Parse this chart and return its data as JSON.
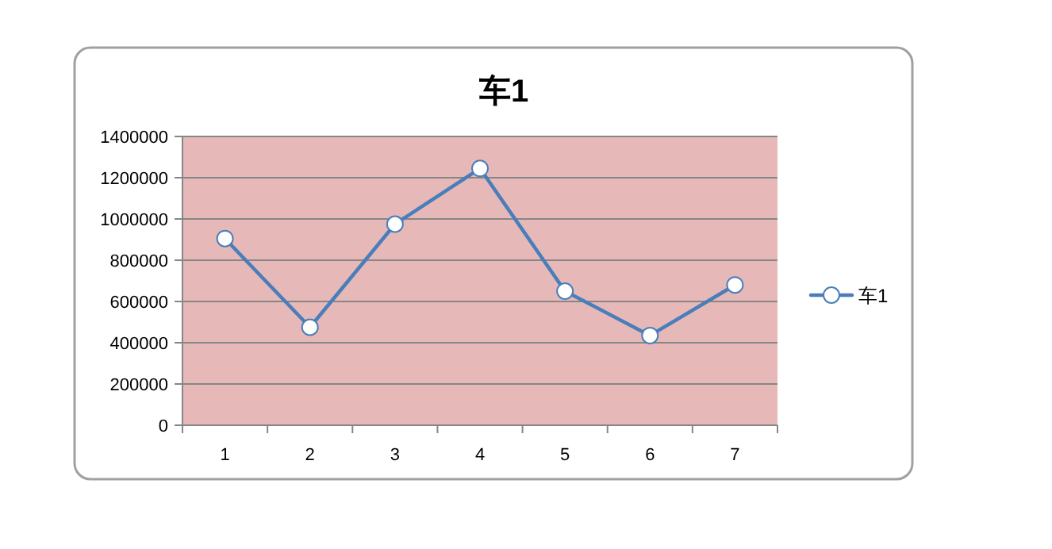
{
  "chart_data": {
    "type": "line",
    "title": "车1",
    "categories": [
      "1",
      "2",
      "3",
      "4",
      "5",
      "6",
      "7"
    ],
    "series": [
      {
        "name": "车1",
        "color": "#4a7ebb",
        "values": [
          905000,
          475000,
          975000,
          1245000,
          650000,
          435000,
          680000
        ]
      }
    ],
    "ylim": [
      0,
      1400000
    ],
    "yticks": [
      0,
      200000,
      400000,
      600000,
      800000,
      1000000,
      1200000,
      1400000
    ],
    "grid": "y",
    "legend": "right",
    "marker": "circle",
    "line_style": "solid"
  }
}
